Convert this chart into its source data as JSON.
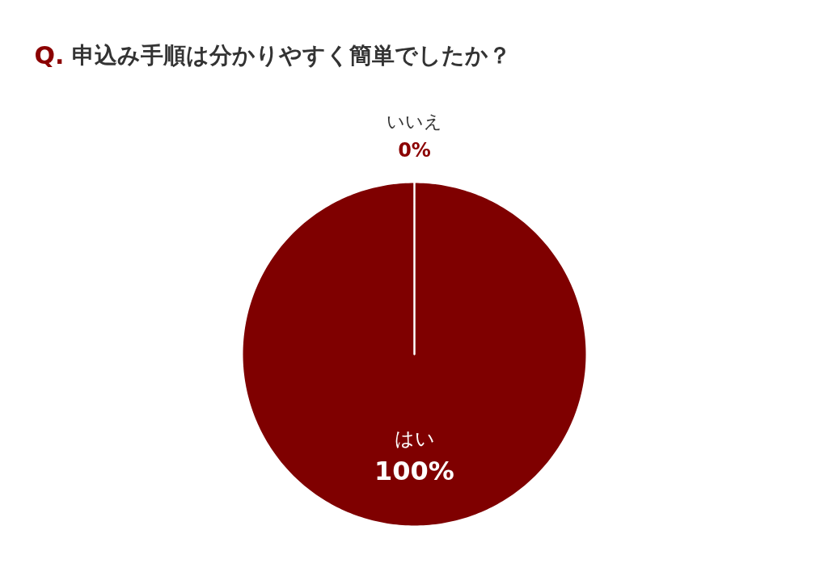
{
  "chart_data": {
    "type": "pie",
    "title": "Q. 申込み手順は分かりやすく簡単でしたか？",
    "categories": [
      "はい",
      "いいえ"
    ],
    "values": [
      100,
      0
    ],
    "colors": [
      "#7f0000",
      "#7f0000"
    ],
    "value_labels": [
      "100%",
      "0%"
    ]
  }
}
